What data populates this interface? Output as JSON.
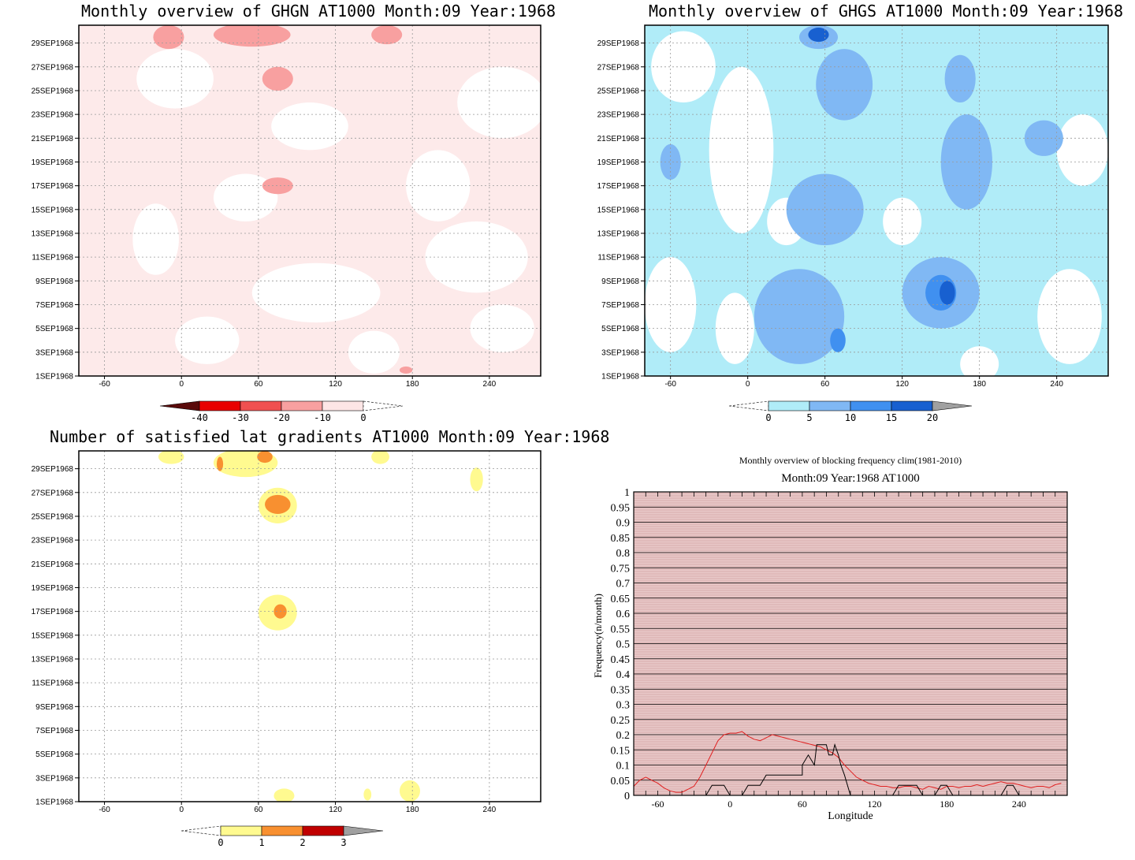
{
  "chart_data": [
    {
      "id": "ghgn",
      "type": "heatmap",
      "title": "Monthly overview of GHGN AT1000 Month:09 Year:1968",
      "x_ticks": [
        "-60",
        "0",
        "60",
        "120",
        "180",
        "240"
      ],
      "x_tick_values": [
        -60,
        0,
        60,
        120,
        180,
        240
      ],
      "xlim": [
        -80,
        280
      ],
      "y_ticks": [
        "29SEP1968",
        "27SEP1968",
        "25SEP1968",
        "23SEP1968",
        "21SEP1968",
        "19SEP1968",
        "17SEP1968",
        "15SEP1968",
        "13SEP1968",
        "11SEP1968",
        "9SEP1968",
        "7SEP1968",
        "5SEP1968",
        "3SEP1968",
        "1SEP1968"
      ],
      "colorbar": {
        "labels": [
          "-40",
          "-30",
          "-20",
          "-10",
          "0"
        ],
        "colors": [
          "#5a0a0a",
          "#e80000",
          "#f05050",
          "#f8a0a0",
          "#fde6e6"
        ],
        "extend": "both"
      },
      "background": "#fdeaea",
      "patches": [
        {
          "color": "#ffffff",
          "shape": "blob",
          "cx": -20,
          "cy": 12.5,
          "rx": 18,
          "ry": 3
        },
        {
          "color": "#ffffff",
          "shape": "blob",
          "cx": 105,
          "cy": 8,
          "rx": 50,
          "ry": 2.5
        },
        {
          "color": "#ffffff",
          "shape": "blob",
          "cx": 230,
          "cy": 11,
          "rx": 40,
          "ry": 3
        },
        {
          "color": "#ffffff",
          "shape": "blob",
          "cx": 250,
          "cy": 24,
          "rx": 35,
          "ry": 3
        },
        {
          "color": "#ffffff",
          "shape": "blob",
          "cx": -5,
          "cy": 26,
          "rx": 30,
          "ry": 2.5
        },
        {
          "color": "#ffffff",
          "shape": "blob",
          "cx": 100,
          "cy": 22,
          "rx": 30,
          "ry": 2
        },
        {
          "color": "#ffffff",
          "shape": "blob",
          "cx": 200,
          "cy": 17,
          "rx": 25,
          "ry": 3
        },
        {
          "color": "#ffffff",
          "shape": "blob",
          "cx": 20,
          "cy": 4,
          "rx": 25,
          "ry": 2
        },
        {
          "color": "#ffffff",
          "shape": "blob",
          "cx": 150,
          "cy": 3,
          "rx": 20,
          "ry": 1.8
        },
        {
          "color": "#ffffff",
          "shape": "blob",
          "cx": 250,
          "cy": 5,
          "rx": 25,
          "ry": 2
        },
        {
          "color": "#ffffff",
          "shape": "blob",
          "cx": 50,
          "cy": 16,
          "rx": 25,
          "ry": 2
        },
        {
          "color": "#f8a0a0",
          "shape": "blob",
          "cx": -10,
          "cy": 29.5,
          "rx": 12,
          "ry": 1
        },
        {
          "color": "#f8a0a0",
          "shape": "blob",
          "cx": 55,
          "cy": 29.7,
          "rx": 30,
          "ry": 1
        },
        {
          "color": "#f8a0a0",
          "shape": "blob",
          "cx": 160,
          "cy": 29.7,
          "rx": 12,
          "ry": 0.8
        },
        {
          "color": "#f8a0a0",
          "shape": "blob",
          "cx": 75,
          "cy": 26,
          "rx": 12,
          "ry": 1
        },
        {
          "color": "#f8a0a0",
          "shape": "blob",
          "cx": 75,
          "cy": 17,
          "rx": 12,
          "ry": 0.7
        },
        {
          "color": "#f8a0a0",
          "shape": "blob",
          "cx": 175,
          "cy": 1.5,
          "rx": 5,
          "ry": 0.3
        }
      ]
    },
    {
      "id": "ghgs",
      "type": "heatmap",
      "title": "Monthly overview of GHGS AT1000 Month:09 Year:1968",
      "x_ticks": [
        "-60",
        "0",
        "60",
        "120",
        "180",
        "240"
      ],
      "x_tick_values": [
        -60,
        0,
        60,
        120,
        180,
        240
      ],
      "xlim": [
        -80,
        280
      ],
      "y_ticks": [
        "29SEP1968",
        "27SEP1968",
        "25SEP1968",
        "23SEP1968",
        "21SEP1968",
        "19SEP1968",
        "17SEP1968",
        "15SEP1968",
        "13SEP1968",
        "11SEP1968",
        "9SEP1968",
        "7SEP1968",
        "5SEP1968",
        "3SEP1968",
        "1SEP1968"
      ],
      "colorbar": {
        "labels": [
          "0",
          "5",
          "10",
          "15",
          "20"
        ],
        "colors": [
          "#b0ecf8",
          "#80b8f4",
          "#4090f0",
          "#1860d0",
          "#a0a0a0"
        ],
        "extend": "both"
      },
      "background": "#b0ecf8",
      "patches": [
        {
          "color": "#ffffff",
          "shape": "blob",
          "cx": -50,
          "cy": 27,
          "rx": 25,
          "ry": 3
        },
        {
          "color": "#ffffff",
          "shape": "blob",
          "cx": -5,
          "cy": 20,
          "rx": 25,
          "ry": 7
        },
        {
          "color": "#ffffff",
          "shape": "blob",
          "cx": 30,
          "cy": 14,
          "rx": 15,
          "ry": 2
        },
        {
          "color": "#ffffff",
          "shape": "blob",
          "cx": -60,
          "cy": 7,
          "rx": 20,
          "ry": 4
        },
        {
          "color": "#ffffff",
          "shape": "blob",
          "cx": -10,
          "cy": 5,
          "rx": 15,
          "ry": 3
        },
        {
          "color": "#ffffff",
          "shape": "blob",
          "cx": 260,
          "cy": 20,
          "rx": 20,
          "ry": 3
        },
        {
          "color": "#ffffff",
          "shape": "blob",
          "cx": 250,
          "cy": 6,
          "rx": 25,
          "ry": 4
        },
        {
          "color": "#ffffff",
          "shape": "blob",
          "cx": 180,
          "cy": 2,
          "rx": 15,
          "ry": 1.5
        },
        {
          "color": "#ffffff",
          "shape": "blob",
          "cx": 120,
          "cy": 14,
          "rx": 15,
          "ry": 2
        },
        {
          "color": "#80b8f4",
          "shape": "blob",
          "cx": 75,
          "cy": 25.5,
          "rx": 22,
          "ry": 3
        },
        {
          "color": "#80b8f4",
          "shape": "blob",
          "cx": 60,
          "cy": 15,
          "rx": 30,
          "ry": 3
        },
        {
          "color": "#80b8f4",
          "shape": "blob",
          "cx": 170,
          "cy": 19,
          "rx": 20,
          "ry": 4
        },
        {
          "color": "#80b8f4",
          "shape": "blob",
          "cx": 150,
          "cy": 8,
          "rx": 30,
          "ry": 3
        },
        {
          "color": "#80b8f4",
          "shape": "blob",
          "cx": 40,
          "cy": 6,
          "rx": 35,
          "ry": 4
        },
        {
          "color": "#80b8f4",
          "shape": "blob",
          "cx": 230,
          "cy": 21,
          "rx": 15,
          "ry": 1.5
        },
        {
          "color": "#80b8f4",
          "shape": "blob",
          "cx": 165,
          "cy": 26,
          "rx": 12,
          "ry": 2
        },
        {
          "color": "#80b8f4",
          "shape": "blob",
          "cx": -60,
          "cy": 19,
          "rx": 8,
          "ry": 1.5
        },
        {
          "color": "#80b8f4",
          "shape": "blob",
          "cx": 55,
          "cy": 29.5,
          "rx": 15,
          "ry": 1
        },
        {
          "color": "#4090f0",
          "shape": "blob",
          "cx": 150,
          "cy": 8,
          "rx": 12,
          "ry": 1.5
        },
        {
          "color": "#4090f0",
          "shape": "blob",
          "cx": 70,
          "cy": 4,
          "rx": 6,
          "ry": 1
        },
        {
          "color": "#1860d0",
          "shape": "blob",
          "cx": 155,
          "cy": 8,
          "rx": 6,
          "ry": 1
        },
        {
          "color": "#1860d0",
          "shape": "blob",
          "cx": 55,
          "cy": 29.7,
          "rx": 8,
          "ry": 0.6
        }
      ]
    },
    {
      "id": "nlat",
      "type": "heatmap",
      "title": "Number of satisfied lat gradients AT1000 Month:09 Year:1968",
      "x_ticks": [
        "-60",
        "0",
        "60",
        "120",
        "180",
        "240"
      ],
      "x_tick_values": [
        -60,
        0,
        60,
        120,
        180,
        240
      ],
      "xlim": [
        -80,
        280
      ],
      "y_ticks": [
        "29SEP1968",
        "27SEP1968",
        "25SEP1968",
        "23SEP1968",
        "21SEP1968",
        "19SEP1968",
        "17SEP1968",
        "15SEP1968",
        "13SEP1968",
        "11SEP1968",
        "9SEP1968",
        "7SEP1968",
        "5SEP1968",
        "3SEP1968",
        "1SEP1968"
      ],
      "colorbar": {
        "labels": [
          "0",
          "1",
          "2",
          "3"
        ],
        "colors": [
          "#fffa90",
          "#f89030",
          "#c00000",
          "#a0a0a0"
        ],
        "extend": "both"
      },
      "background": "#ffffff",
      "patches": [
        {
          "color": "#fffa90",
          "shape": "blob",
          "cx": -8,
          "cy": 30,
          "rx": 10,
          "ry": 0.6
        },
        {
          "color": "#fffa90",
          "shape": "blob",
          "cx": 50,
          "cy": 29.5,
          "rx": 25,
          "ry": 1.2
        },
        {
          "color": "#fffa90",
          "shape": "blob",
          "cx": 155,
          "cy": 30,
          "rx": 7,
          "ry": 0.6
        },
        {
          "color": "#fffa90",
          "shape": "blob",
          "cx": 230,
          "cy": 28.1,
          "rx": 5,
          "ry": 1
        },
        {
          "color": "#fffa90",
          "shape": "blob",
          "cx": 75,
          "cy": 25.9,
          "rx": 15,
          "ry": 1.5
        },
        {
          "color": "#fffa90",
          "shape": "blob",
          "cx": 75,
          "cy": 16.9,
          "rx": 15,
          "ry": 1.5
        },
        {
          "color": "#fffa90",
          "shape": "blob",
          "cx": 178,
          "cy": 1.9,
          "rx": 8,
          "ry": 0.9
        },
        {
          "color": "#fffa90",
          "shape": "blob",
          "cx": 80,
          "cy": 1.5,
          "rx": 8,
          "ry": 0.6
        },
        {
          "color": "#fffa90",
          "shape": "blob",
          "cx": 145,
          "cy": 1.6,
          "rx": 3,
          "ry": 0.5
        },
        {
          "color": "#f89030",
          "shape": "blob",
          "cx": 75,
          "cy": 26,
          "rx": 10,
          "ry": 0.8
        },
        {
          "color": "#f89030",
          "shape": "blob",
          "cx": 30,
          "cy": 29.4,
          "rx": 2.5,
          "ry": 0.6
        },
        {
          "color": "#f89030",
          "shape": "blob",
          "cx": 65,
          "cy": 30,
          "rx": 6,
          "ry": 0.5
        },
        {
          "color": "#f89030",
          "shape": "blob",
          "cx": 77,
          "cy": 17,
          "rx": 5,
          "ry": 0.6
        }
      ]
    },
    {
      "id": "blockfreq",
      "type": "line",
      "title": "Monthly overview of blocking frequency clim(1981-2010)",
      "subtitle": "Month:09 Year:1968  AT1000",
      "xlabel": "Longitude",
      "ylabel": "Frequency(n/month)",
      "xlim": [
        -80,
        280
      ],
      "ylim": [
        0,
        1
      ],
      "x_ticks": [
        "-60",
        "0",
        "60",
        "120",
        "180",
        "240"
      ],
      "x_tick_values": [
        -60,
        0,
        60,
        120,
        180,
        240
      ],
      "y_ticks": [
        "0",
        "0.05",
        "0.1",
        "0.15",
        "0.2",
        "0.25",
        "0.3",
        "0.35",
        "0.4",
        "0.45",
        "0.5",
        "0.55",
        "0.6",
        "0.65",
        "0.7",
        "0.75",
        "0.8",
        "0.85",
        "0.9",
        "0.95",
        "1"
      ],
      "y_tick_values": [
        0,
        0.05,
        0.1,
        0.15,
        0.2,
        0.25,
        0.3,
        0.35,
        0.4,
        0.45,
        0.5,
        0.55,
        0.6,
        0.65,
        0.7,
        0.75,
        0.8,
        0.85,
        0.9,
        0.95,
        1
      ],
      "background": "#e8c8c8",
      "series": [
        {
          "color": "#e02020",
          "x": [
            -80,
            -75,
            -70,
            -65,
            -60,
            -55,
            -50,
            -45,
            -40,
            -35,
            -30,
            -25,
            -20,
            -15,
            -10,
            -5,
            0,
            5,
            10,
            15,
            20,
            25,
            30,
            35,
            40,
            45,
            50,
            55,
            60,
            65,
            70,
            75,
            80,
            85,
            90,
            95,
            100,
            105,
            110,
            115,
            120,
            125,
            130,
            135,
            140,
            145,
            150,
            155,
            160,
            165,
            170,
            175,
            180,
            185,
            190,
            195,
            200,
            205,
            210,
            215,
            220,
            225,
            230,
            235,
            240,
            245,
            250,
            255,
            260,
            265,
            270,
            275
          ],
          "y": [
            0.03,
            0.05,
            0.06,
            0.05,
            0.04,
            0.025,
            0.015,
            0.01,
            0.01,
            0.02,
            0.03,
            0.06,
            0.1,
            0.14,
            0.18,
            0.2,
            0.205,
            0.205,
            0.21,
            0.195,
            0.185,
            0.18,
            0.19,
            0.2,
            0.195,
            0.19,
            0.185,
            0.18,
            0.175,
            0.17,
            0.165,
            0.16,
            0.15,
            0.14,
            0.125,
            0.1,
            0.08,
            0.06,
            0.05,
            0.04,
            0.035,
            0.03,
            0.03,
            0.025,
            0.025,
            0.03,
            0.03,
            0.025,
            0.02,
            0.03,
            0.025,
            0.02,
            0.03,
            0.03,
            0.025,
            0.03,
            0.03,
            0.035,
            0.03,
            0.035,
            0.04,
            0.045,
            0.04,
            0.04,
            0.035,
            0.03,
            0.025,
            0.03,
            0.03,
            0.025,
            0.035,
            0.04
          ]
        },
        {
          "color": "#000000",
          "x": [
            -80,
            -20,
            -15,
            -5,
            0,
            10,
            15,
            20,
            25,
            30,
            35,
            40,
            50,
            55,
            60,
            60,
            65,
            70,
            72,
            75,
            80,
            82,
            85,
            87,
            90,
            92,
            95,
            100,
            135,
            140,
            150,
            155,
            160,
            165,
            170,
            175,
            180,
            185,
            195,
            200,
            225,
            230,
            235,
            240,
            280
          ],
          "y": [
            0,
            0,
            0.033,
            0.033,
            0,
            0,
            0.033,
            0.033,
            0.033,
            0.067,
            0.067,
            0.067,
            0.067,
            0.067,
            0.067,
            0.1,
            0.133,
            0.1,
            0.167,
            0.167,
            0.167,
            0.133,
            0.133,
            0.167,
            0.133,
            0.1,
            0.067,
            0,
            0,
            0.033,
            0.033,
            0.033,
            0,
            0,
            0,
            0.033,
            0.033,
            0,
            0,
            0,
            0,
            0.033,
            0.033,
            0,
            0
          ]
        }
      ]
    }
  ]
}
